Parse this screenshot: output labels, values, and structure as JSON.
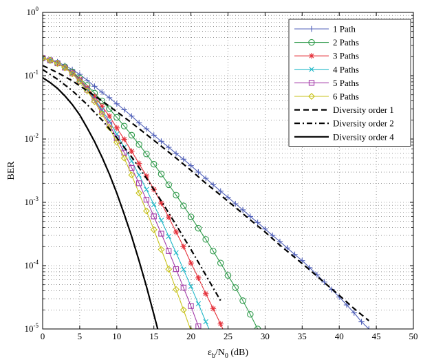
{
  "chart_data": {
    "type": "line",
    "xlabel": {
      "main": "ε",
      "sub1": "b",
      "mid": "/N",
      "sub2": "0",
      "unit": " (dB)"
    },
    "ylabel": "BER",
    "xlim": [
      0,
      50
    ],
    "ylim": [
      1e-05,
      1
    ],
    "yscale": "log",
    "grid": true,
    "legend_position": "top-right",
    "x_ticks": [
      "0",
      "5",
      "10",
      "15",
      "20",
      "25",
      "30",
      "35",
      "40",
      "45",
      "50"
    ],
    "y_ticks": [
      {
        "base": "10",
        "exp": "0"
      },
      {
        "base": "10",
        "exp": "-1"
      },
      {
        "base": "10",
        "exp": "-2"
      },
      {
        "base": "10",
        "exp": "-3"
      },
      {
        "base": "10",
        "exp": "-4"
      },
      {
        "base": "10",
        "exp": "-5"
      }
    ],
    "series": [
      {
        "name": "1 Path",
        "color": "#4f5fb8",
        "marker": "plus",
        "dash": "solid",
        "x": [
          0,
          1,
          2,
          3,
          4,
          5,
          6,
          7,
          8,
          9,
          10,
          11,
          12,
          13,
          14,
          15,
          16,
          17,
          18,
          19,
          20,
          21,
          22,
          23,
          24,
          25,
          26,
          27,
          28,
          29,
          30,
          31,
          32,
          33,
          34,
          35,
          36,
          37,
          38,
          39,
          40,
          41,
          42,
          43,
          44
        ],
        "y": [
          0.19,
          0.18,
          0.165,
          0.145,
          0.125,
          0.105,
          0.085,
          0.068,
          0.055,
          0.045,
          0.036,
          0.029,
          0.023,
          0.018,
          0.0145,
          0.0115,
          0.0092,
          0.0074,
          0.0059,
          0.0048,
          0.0038,
          0.003,
          0.0024,
          0.0019,
          0.0015,
          0.0012,
          0.00095,
          0.00076,
          0.0006,
          0.00048,
          0.00038,
          0.0003,
          0.00024,
          0.00019,
          0.00015,
          0.00012,
          9.3e-05,
          7.2e-05,
          5.5e-05,
          4.2e-05,
          3.2e-05,
          2.4e-05,
          1.8e-05,
          1.3e-05,
          1e-05
        ]
      },
      {
        "name": "2 Paths",
        "color": "#2e9a4a",
        "marker": "circle",
        "dash": "solid",
        "x": [
          0,
          1,
          2,
          3,
          4,
          5,
          6,
          7,
          8,
          9,
          10,
          11,
          12,
          13,
          14,
          15,
          16,
          17,
          18,
          19,
          20,
          21,
          22,
          23,
          24,
          25,
          26,
          27,
          28,
          29
        ],
        "y": [
          0.19,
          0.175,
          0.158,
          0.138,
          0.115,
          0.092,
          0.07,
          0.053,
          0.04,
          0.03,
          0.022,
          0.016,
          0.0115,
          0.0082,
          0.0058,
          0.004,
          0.0028,
          0.0019,
          0.0013,
          0.00088,
          0.00059,
          0.00039,
          0.00026,
          0.00017,
          0.00011,
          7e-05,
          4.5e-05,
          2.8e-05,
          1.7e-05,
          1e-05
        ]
      },
      {
        "name": "3 Paths",
        "color": "#e5303a",
        "marker": "star",
        "dash": "solid",
        "x": [
          0,
          1,
          2,
          3,
          4,
          5,
          6,
          7,
          8,
          9,
          10,
          11,
          12,
          13,
          14,
          15,
          16,
          17,
          18,
          19,
          20,
          21,
          22,
          23,
          24,
          25
        ],
        "y": [
          0.19,
          0.175,
          0.158,
          0.136,
          0.112,
          0.088,
          0.065,
          0.047,
          0.033,
          0.023,
          0.015,
          0.0099,
          0.0064,
          0.0041,
          0.0026,
          0.0016,
          0.00097,
          0.00058,
          0.00034,
          0.0002,
          0.00011,
          6.4e-05,
          3.6e-05,
          2.1e-05,
          1.2e-05,
          6.5e-06
        ]
      },
      {
        "name": "4 Paths",
        "color": "#22b8c8",
        "marker": "x",
        "dash": "solid",
        "x": [
          0,
          1,
          2,
          3,
          4,
          5,
          6,
          7,
          8,
          9,
          10,
          11,
          12,
          13,
          14,
          15,
          16,
          17,
          18,
          19,
          20,
          21,
          22,
          23
        ],
        "y": [
          0.19,
          0.175,
          0.158,
          0.135,
          0.11,
          0.085,
          0.062,
          0.043,
          0.029,
          0.019,
          0.012,
          0.0074,
          0.0045,
          0.0027,
          0.0016,
          0.00092,
          0.00052,
          0.00029,
          0.00016,
          8.7e-05,
          4.7e-05,
          2.5e-05,
          1.3e-05,
          7.2e-06
        ]
      },
      {
        "name": "5 Paths",
        "color": "#a23aa8",
        "marker": "square",
        "dash": "solid",
        "x": [
          0,
          1,
          2,
          3,
          4,
          5,
          6,
          7,
          8,
          9,
          10,
          11,
          12,
          13,
          14,
          15,
          16,
          17,
          18,
          19,
          20,
          21,
          22
        ],
        "y": [
          0.19,
          0.175,
          0.157,
          0.134,
          0.109,
          0.083,
          0.06,
          0.041,
          0.027,
          0.017,
          0.0103,
          0.0061,
          0.0035,
          0.002,
          0.0011,
          0.0006,
          0.00032,
          0.00017,
          8.8e-05,
          4.5e-05,
          2.3e-05,
          1.1e-05,
          5.8e-06
        ]
      },
      {
        "name": "6 Paths",
        "color": "#c7c21a",
        "marker": "diamond",
        "dash": "solid",
        "x": [
          0,
          1,
          2,
          3,
          4,
          5,
          6,
          7,
          8,
          9,
          10,
          11,
          12,
          13,
          14,
          15,
          16,
          17,
          18,
          19,
          20
        ],
        "y": [
          0.19,
          0.175,
          0.156,
          0.133,
          0.107,
          0.081,
          0.058,
          0.039,
          0.025,
          0.0153,
          0.0089,
          0.005,
          0.0027,
          0.0014,
          0.00073,
          0.00037,
          0.00018,
          8.8e-05,
          4.2e-05,
          2e-05,
          9.4e-06
        ]
      },
      {
        "name": "Diversity order 1",
        "color": "#000000",
        "marker": "none",
        "dash": "dash",
        "x": [
          0,
          2,
          4,
          6,
          8,
          10,
          12,
          14,
          16,
          18,
          20,
          22,
          24,
          26,
          28,
          30,
          32,
          34,
          36,
          38,
          40,
          42,
          44
        ],
        "y": [
          0.145,
          0.112,
          0.083,
          0.058,
          0.04,
          0.027,
          0.018,
          0.0118,
          0.0077,
          0.005,
          0.0032,
          0.002,
          0.0013,
          0.00083,
          0.00053,
          0.00034,
          0.00021,
          0.000135,
          8.6e-05,
          5.4e-05,
          3.4e-05,
          2.1e-05,
          1.35e-05
        ]
      },
      {
        "name": "Diversity order 2",
        "color": "#000000",
        "marker": "none",
        "dash": "dashdot",
        "x": [
          0,
          2,
          4,
          6,
          8,
          10,
          12,
          14,
          16,
          18,
          20,
          22,
          24
        ],
        "y": [
          0.125,
          0.088,
          0.058,
          0.035,
          0.02,
          0.0105,
          0.0052,
          0.0024,
          0.00105,
          0.00044,
          0.00018,
          7.1e-05,
          2.8e-05
        ]
      },
      {
        "name": "Diversity order 4",
        "color": "#000000",
        "marker": "none",
        "dash": "solid",
        "x": [
          0,
          1,
          2,
          3,
          4,
          5,
          6,
          7,
          8,
          9,
          10,
          11,
          12,
          13,
          14,
          15,
          15.8
        ],
        "y": [
          0.093,
          0.078,
          0.063,
          0.048,
          0.035,
          0.024,
          0.015,
          0.0091,
          0.0052,
          0.0028,
          0.0014,
          0.00065,
          0.00029,
          0.00012,
          4.7e-05,
          1.7e-05,
          7.5e-06
        ]
      }
    ]
  }
}
